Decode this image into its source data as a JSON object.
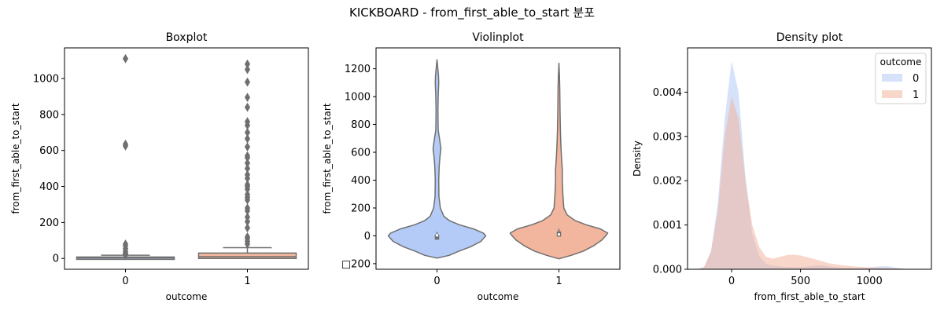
{
  "figure": {
    "suptitle": "KICKBOARD - from_first_able_to_start 분포"
  },
  "chart_data": [
    {
      "type": "box",
      "title": "Boxplot",
      "xlabel": "outcome",
      "ylabel": "from_first_able_to_start",
      "categories": [
        "0",
        "1"
      ],
      "ylim": [
        -60,
        1170
      ],
      "yticks": [
        0,
        200,
        400,
        600,
        800,
        1000
      ],
      "colors": [
        "#b3cbf6",
        "#f2b59e"
      ],
      "boxes": [
        {
          "category": "0",
          "q1": 0,
          "median": 3,
          "q3": 8,
          "whisker_low": 0,
          "whisker_high": 18,
          "outliers": [
            20,
            25,
            30,
            40,
            55,
            70,
            80,
            625,
            635,
            1110
          ]
        },
        {
          "category": "1",
          "q1": 0,
          "median": 10,
          "q3": 30,
          "whisker_low": 0,
          "whisker_high": 60,
          "outliers": [
            80,
            95,
            110,
            120,
            170,
            205,
            230,
            265,
            280,
            325,
            340,
            355,
            385,
            400,
            410,
            445,
            465,
            500,
            530,
            560,
            570,
            620,
            665,
            700,
            740,
            760,
            840,
            895,
            980,
            1050,
            1080
          ]
        }
      ]
    },
    {
      "type": "violin",
      "title": "Violinplot",
      "xlabel": "outcome",
      "ylabel": "from_first_able_to_start",
      "categories": [
        "0",
        "1"
      ],
      "ylim": [
        -240,
        1350
      ],
      "yticks": [
        -200,
        0,
        200,
        400,
        600,
        800,
        1000,
        1200
      ],
      "ytick_labels": [
        "□200",
        "0",
        "200",
        "400",
        "600",
        "800",
        "1000",
        "1200"
      ],
      "colors": [
        "#b3cbf6",
        "#f2b59e"
      ],
      "violins": [
        {
          "category": "0",
          "min": -160,
          "max": 1265,
          "q1": 0,
          "median": 3,
          "q3": 8,
          "profile": [
            [
              -160,
              0.0
            ],
            [
              -140,
              0.25
            ],
            [
              -110,
              0.45
            ],
            [
              -80,
              0.68
            ],
            [
              -40,
              0.9
            ],
            [
              0,
              1.0
            ],
            [
              20,
              0.95
            ],
            [
              50,
              0.75
            ],
            [
              80,
              0.45
            ],
            [
              110,
              0.25
            ],
            [
              140,
              0.14
            ],
            [
              200,
              0.07
            ],
            [
              280,
              0.04
            ],
            [
              400,
              0.035
            ],
            [
              500,
              0.045
            ],
            [
              580,
              0.065
            ],
            [
              625,
              0.08
            ],
            [
              680,
              0.06
            ],
            [
              760,
              0.025
            ],
            [
              900,
              0.02
            ],
            [
              1000,
              0.025
            ],
            [
              1100,
              0.035
            ],
            [
              1150,
              0.03
            ],
            [
              1265,
              0.0
            ]
          ]
        },
        {
          "category": "1",
          "min": -165,
          "max": 1240,
          "q1": 0,
          "median": 10,
          "q3": 30,
          "profile": [
            [
              -165,
              0.0
            ],
            [
              -140,
              0.25
            ],
            [
              -110,
              0.5
            ],
            [
              -70,
              0.72
            ],
            [
              -30,
              0.88
            ],
            [
              0,
              0.96
            ],
            [
              20,
              1.0
            ],
            [
              50,
              0.85
            ],
            [
              80,
              0.55
            ],
            [
              110,
              0.33
            ],
            [
              150,
              0.17
            ],
            [
              200,
              0.1
            ],
            [
              300,
              0.08
            ],
            [
              400,
              0.07
            ],
            [
              480,
              0.07
            ],
            [
              550,
              0.055
            ],
            [
              650,
              0.04
            ],
            [
              750,
              0.03
            ],
            [
              900,
              0.022
            ],
            [
              1050,
              0.018
            ],
            [
              1150,
              0.012
            ],
            [
              1240,
              0.0
            ]
          ]
        }
      ]
    },
    {
      "type": "area",
      "title": "Density plot",
      "xlabel": "from_first_able_to_start",
      "ylabel": "Density",
      "xlim": [
        -320,
        1450
      ],
      "ylim": [
        0,
        0.005
      ],
      "xticks": [
        0,
        500,
        1000
      ],
      "yticks": [
        0.0,
        0.001,
        0.002,
        0.003,
        0.004
      ],
      "ytick_labels": [
        "0.000",
        "0.001",
        "0.002",
        "0.003",
        "0.004"
      ],
      "legend": {
        "title": "outcome",
        "placement": "upper right"
      },
      "series": [
        {
          "name": "0",
          "color": "#b3cbf6",
          "x": [
            -250,
            -200,
            -150,
            -100,
            -50,
            0,
            50,
            100,
            150,
            200,
            250,
            300,
            400,
            500,
            550,
            600,
            650,
            700,
            800,
            900,
            1000,
            1050,
            1100,
            1150,
            1200,
            1250,
            1300
          ],
          "y": [
            0.0,
            5e-05,
            0.0004,
            0.0015,
            0.0034,
            0.0047,
            0.004,
            0.0021,
            0.0008,
            0.0003,
            0.00012,
            8e-05,
            5e-05,
            5e-05,
            6e-05,
            8e-05,
            9e-05,
            7e-05,
            3e-05,
            2e-05,
            4e-05,
            6e-05,
            7e-05,
            6e-05,
            3e-05,
            1e-05,
            0.0
          ]
        },
        {
          "name": "1",
          "color": "#f2b59e",
          "x": [
            -250,
            -200,
            -150,
            -100,
            -50,
            0,
            50,
            100,
            150,
            200,
            250,
            300,
            350,
            400,
            450,
            500,
            600,
            700,
            800,
            900,
            1000,
            1100,
            1200,
            1300
          ],
          "y": [
            0.0,
            5e-05,
            0.0004,
            0.0013,
            0.003,
            0.0039,
            0.0034,
            0.002,
            0.001,
            0.0005,
            0.00028,
            0.00024,
            0.00028,
            0.00032,
            0.00033,
            0.00031,
            0.00023,
            0.00014,
            9e-05,
            6e-05,
            4e-05,
            3e-05,
            2e-05,
            0.0
          ]
        }
      ]
    }
  ]
}
